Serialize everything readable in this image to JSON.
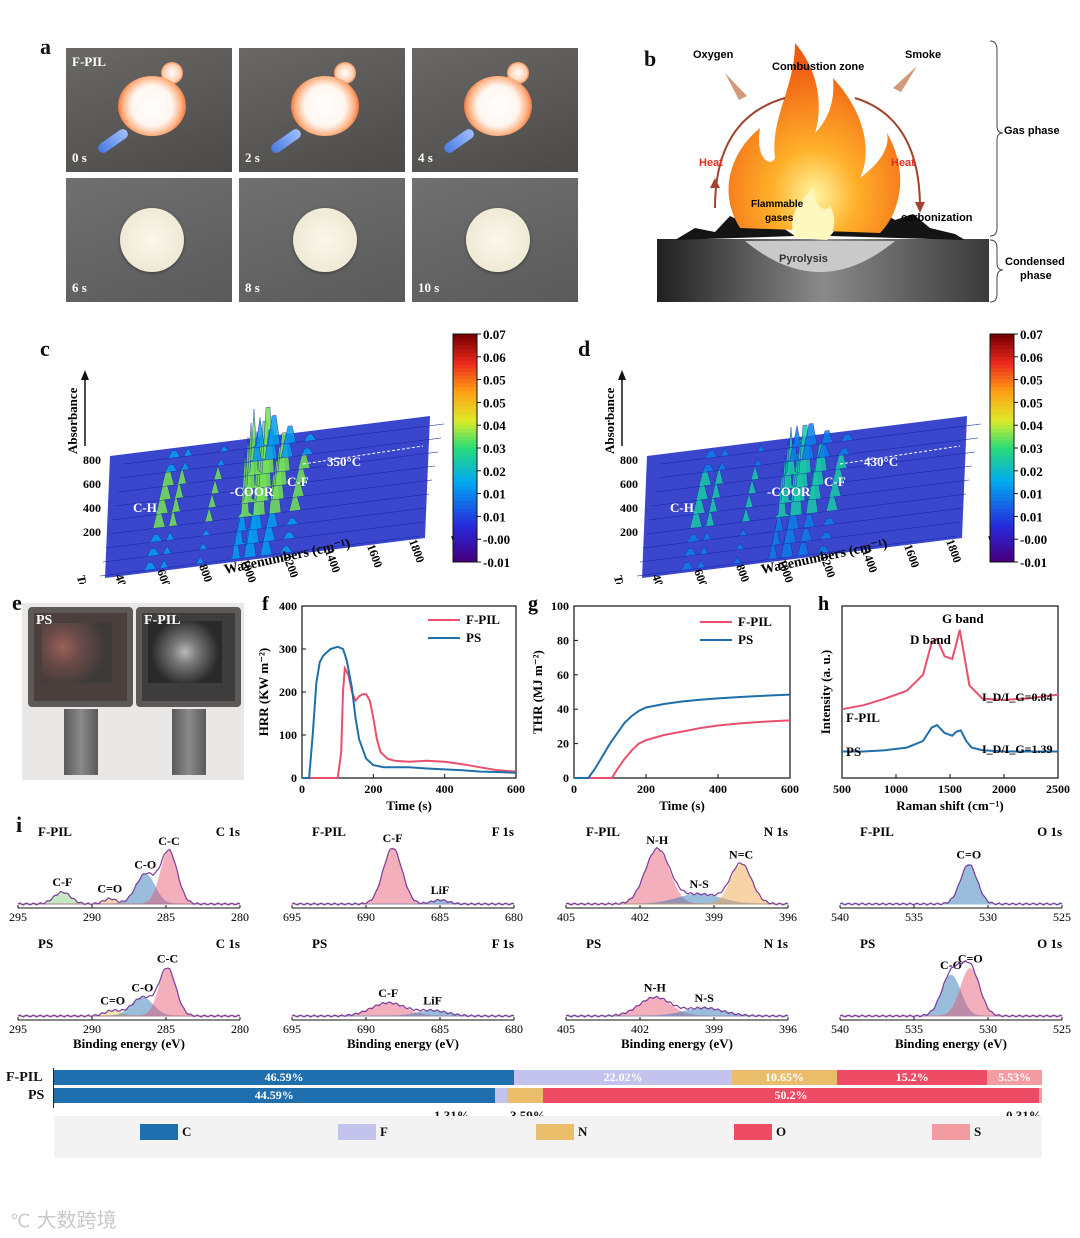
{
  "panel_a": {
    "letter": "a",
    "sample_label": "F-PIL",
    "frames": [
      {
        "time": "0 s",
        "state": "burning"
      },
      {
        "time": "2 s",
        "state": "burning"
      },
      {
        "time": "4 s",
        "state": "burning"
      },
      {
        "time": "6 s",
        "state": "extinguished"
      },
      {
        "time": "8 s",
        "state": "extinguished"
      },
      {
        "time": "10 s",
        "state": "extinguished"
      }
    ]
  },
  "panel_b": {
    "letter": "b",
    "labels": {
      "oxygen": "Oxygen",
      "combustion_zone": "Combustion zone",
      "smoke": "Smoke",
      "heat_left": "Heat",
      "heat_right": "Heat",
      "flammable_1": "Flammable",
      "flammable_2": "gases",
      "carbonization": "carbonization",
      "pyrolysis": "Pyrolysis",
      "gas_phase": "Gas phase",
      "condensed_1": "Condensed",
      "condensed_2": "phase"
    }
  },
  "panel_c": {
    "letter": "c",
    "annotation": "350°C",
    "peaks": [
      "C-H",
      "-COOR",
      "C-F"
    ]
  },
  "panel_d": {
    "letter": "d",
    "annotation": "430°C",
    "peaks": [
      "C-H",
      "-COOR",
      "C-F"
    ]
  },
  "ftir_axes": {
    "z_label": "Absorbance",
    "y_label": "Temperature (°C)",
    "x_label": "Wavenumbers (cm⁻¹)",
    "x_ticks": [
      "400",
      "600",
      "800",
      "1000",
      "1200",
      "1400",
      "1600",
      "1800",
      "2000"
    ],
    "y_ticks": [
      "200",
      "400",
      "600",
      "800"
    ],
    "colorbar_ticks": [
      "0.07",
      "0.06",
      "0.05",
      "0.05",
      "0.04",
      "0.03",
      "0.02",
      "0.01",
      "0.01",
      "-0.00",
      "-0.01"
    ]
  },
  "panel_e": {
    "letter": "e",
    "left_label": "PS",
    "right_label": "F-PIL"
  },
  "colors": {
    "fpil": "#e8506e",
    "ps": "#1f6fa8",
    "C": "#1f6fae",
    "F": "#c3c3ee",
    "N": "#e9bd6a",
    "O": "#ee4b64",
    "S": "#f39ca2"
  },
  "chart_data": [
    {
      "id": "f",
      "type": "line",
      "letter": "f",
      "xlabel": "Time (s)",
      "ylabel": "HRR (KW m⁻²)",
      "xlim": [
        0,
        600
      ],
      "ylim": [
        0,
        400
      ],
      "x_ticks": [
        "0",
        "200",
        "400",
        "600"
      ],
      "y_ticks": [
        "0",
        "100",
        "200",
        "300",
        "400"
      ],
      "series": [
        {
          "name": "F-PIL",
          "x": [
            0,
            100,
            110,
            115,
            120,
            130,
            140,
            150,
            160,
            170,
            180,
            190,
            200,
            210,
            220,
            240,
            260,
            300,
            350,
            400,
            450,
            500,
            550,
            600
          ],
          "y": [
            0,
            0,
            60,
            200,
            255,
            240,
            200,
            180,
            190,
            195,
            195,
            180,
            140,
            90,
            60,
            45,
            40,
            38,
            40,
            38,
            32,
            25,
            18,
            15
          ]
        },
        {
          "name": "PS",
          "x": [
            0,
            20,
            30,
            40,
            50,
            60,
            80,
            100,
            115,
            125,
            140,
            150,
            160,
            180,
            200,
            230,
            260,
            300,
            350,
            400,
            450,
            500,
            550,
            600
          ],
          "y": [
            0,
            0,
            100,
            220,
            270,
            285,
            300,
            305,
            300,
            275,
            210,
            140,
            90,
            45,
            30,
            25,
            25,
            25,
            22,
            20,
            18,
            15,
            14,
            12
          ]
        }
      ]
    },
    {
      "id": "g",
      "type": "line",
      "letter": "g",
      "xlabel": "Time (s)",
      "ylabel": "THR (MJ m⁻²)",
      "xlim": [
        0,
        600
      ],
      "ylim": [
        0,
        100
      ],
      "x_ticks": [
        "0",
        "200",
        "400",
        "600"
      ],
      "y_ticks": [
        "0",
        "20",
        "40",
        "60",
        "80",
        "100"
      ],
      "series": [
        {
          "name": "F-PIL",
          "x": [
            0,
            105,
            120,
            140,
            160,
            180,
            200,
            250,
            300,
            350,
            400,
            450,
            500,
            550,
            600
          ],
          "y": [
            0,
            0,
            5,
            11,
            16,
            20,
            22,
            25,
            27,
            29,
            30.5,
            31.5,
            32.3,
            33,
            33.5
          ]
        },
        {
          "name": "PS",
          "x": [
            0,
            40,
            60,
            80,
            100,
            120,
            140,
            160,
            180,
            200,
            250,
            300,
            350,
            400,
            450,
            500,
            550,
            600
          ],
          "y": [
            0,
            0,
            6,
            13,
            20,
            26,
            32,
            36,
            39,
            41,
            43,
            44.5,
            45.5,
            46.3,
            47,
            47.5,
            48,
            48.5
          ]
        }
      ]
    },
    {
      "id": "h",
      "type": "line",
      "letter": "h",
      "xlabel": "Raman shift (cm⁻¹)",
      "ylabel": "Intensity (a. u.)",
      "xlim": [
        500,
        2500
      ],
      "x_ticks": [
        "500",
        "1000",
        "1500",
        "2000",
        "2500"
      ],
      "annotations": [
        "G band",
        "D band",
        "I_D/I_G=0.84",
        "I_D/I_G=1.39"
      ],
      "series": [
        {
          "name": "F-PIL",
          "x": [
            500,
            700,
            900,
            1100,
            1250,
            1330,
            1380,
            1450,
            1520,
            1560,
            1590,
            1620,
            1680,
            1800,
            2000,
            2200,
            2400,
            2500
          ],
          "y": [
            0.52,
            0.55,
            0.6,
            0.66,
            0.78,
            1.02,
            1.05,
            0.92,
            0.9,
            1.02,
            1.12,
            0.98,
            0.7,
            0.6,
            0.59,
            0.6,
            0.62,
            0.63
          ]
        },
        {
          "name": "PS",
          "x": [
            500,
            700,
            900,
            1100,
            1250,
            1330,
            1380,
            1450,
            1520,
            1560,
            1600,
            1650,
            1700,
            1800,
            2000,
            2200,
            2400,
            2500
          ],
          "y": [
            0.12,
            0.12,
            0.13,
            0.15,
            0.2,
            0.3,
            0.32,
            0.26,
            0.24,
            0.27,
            0.28,
            0.2,
            0.15,
            0.13,
            0.12,
            0.12,
            0.12,
            0.12
          ]
        }
      ]
    },
    {
      "id": "i",
      "type": "line",
      "letter": "i",
      "xlabel": "Binding energy (eV)",
      "panels": [
        {
          "sample": "F-PIL",
          "element": "C 1s",
          "x_ticks": [
            "295",
            "290",
            "285",
            "280"
          ],
          "xlim": [
            295,
            280
          ],
          "peaks": [
            {
              "label": "C-F",
              "center": 292,
              "height": 0.18,
              "width": 0.8,
              "color": "#7fcf7f"
            },
            {
              "label": "C=O",
              "center": 288.8,
              "height": 0.08,
              "width": 0.6,
              "color": "#f0a060"
            },
            {
              "label": "C-O",
              "center": 286.4,
              "height": 0.45,
              "width": 0.9,
              "color": "#1f6fae"
            },
            {
              "label": "C-C",
              "center": 284.8,
              "height": 0.8,
              "width": 0.8,
              "color": "#e8506e"
            }
          ]
        },
        {
          "sample": "F-PIL",
          "element": "F 1s",
          "x_ticks": [
            "695",
            "690",
            "685",
            "680"
          ],
          "xlim": [
            695,
            680
          ],
          "peaks": [
            {
              "label": "C-F",
              "center": 688.2,
              "height": 0.85,
              "width": 0.9,
              "color": "#e8506e"
            },
            {
              "label": "LiF",
              "center": 685,
              "height": 0.06,
              "width": 0.8,
              "color": "#1f6fae"
            }
          ]
        },
        {
          "sample": "F-PIL",
          "element": "N 1s",
          "x_ticks": [
            "405",
            "402",
            "399",
            "396"
          ],
          "xlim": [
            405,
            396
          ],
          "peaks": [
            {
              "label": "N-H",
              "center": 401.3,
              "height": 0.82,
              "width": 0.7,
              "color": "#e8506e"
            },
            {
              "label": "N-S",
              "center": 399.6,
              "height": 0.15,
              "width": 1.2,
              "color": "#1f6fae"
            },
            {
              "label": "N=C",
              "center": 397.9,
              "height": 0.6,
              "width": 0.6,
              "color": "#f0a040"
            }
          ]
        },
        {
          "sample": "F-PIL",
          "element": "O 1s",
          "x_ticks": [
            "540",
            "535",
            "530",
            "525"
          ],
          "xlim": [
            540,
            525
          ],
          "peaks": [
            {
              "label": "C=O",
              "center": 531.3,
              "height": 0.6,
              "width": 0.8,
              "color": "#1f6fae"
            }
          ]
        },
        {
          "sample": "PS",
          "element": "C 1s",
          "x_ticks": [
            "295",
            "290",
            "285",
            "280"
          ],
          "xlim": [
            295,
            280
          ],
          "peaks": [
            {
              "label": "C=O",
              "center": 288.6,
              "height": 0.08,
              "width": 0.8,
              "color": "#f0c050"
            },
            {
              "label": "C-O",
              "center": 286.6,
              "height": 0.28,
              "width": 1.0,
              "color": "#1f6fae"
            },
            {
              "label": "C-C",
              "center": 284.9,
              "height": 0.72,
              "width": 0.8,
              "color": "#e8506e"
            }
          ]
        },
        {
          "sample": "PS",
          "element": "F 1s",
          "x_ticks": [
            "695",
            "690",
            "685",
            "680"
          ],
          "xlim": [
            695,
            680
          ],
          "peaks": [
            {
              "label": "C-F",
              "center": 688.5,
              "height": 0.2,
              "width": 1.6,
              "color": "#e8506e"
            },
            {
              "label": "LiF",
              "center": 685.5,
              "height": 0.08,
              "width": 1.4,
              "color": "#1f6fae"
            }
          ]
        },
        {
          "sample": "PS",
          "element": "N 1s",
          "x_ticks": [
            "405",
            "402",
            "399",
            "396"
          ],
          "xlim": [
            405,
            396
          ],
          "peaks": [
            {
              "label": "N-H",
              "center": 401.4,
              "height": 0.28,
              "width": 0.9,
              "color": "#e8506e"
            },
            {
              "label": "N-S",
              "center": 399.4,
              "height": 0.12,
              "width": 1.1,
              "color": "#1f6fae"
            }
          ]
        },
        {
          "sample": "PS",
          "element": "O 1s",
          "x_ticks": [
            "540",
            "535",
            "530",
            "525"
          ],
          "xlim": [
            540,
            525
          ],
          "peaks": [
            {
              "label": "C-O",
              "center": 532.5,
              "height": 0.62,
              "width": 0.9,
              "color": "#1f6fae"
            },
            {
              "label": "C=O",
              "center": 531.2,
              "height": 0.72,
              "width": 0.9,
              "color": "#e8506e"
            }
          ]
        }
      ]
    },
    {
      "id": "composition",
      "type": "bar",
      "stacked": true,
      "orientation": "horizontal",
      "categories": [
        "F-PIL",
        "PS"
      ],
      "series": [
        {
          "name": "C",
          "values": [
            46.59,
            44.59
          ],
          "labels": [
            "46.59%",
            "44.59%"
          ]
        },
        {
          "name": "F",
          "values": [
            22.02,
            1.31
          ],
          "labels": [
            "22.02%",
            "1.31%"
          ]
        },
        {
          "name": "N",
          "values": [
            10.65,
            3.59
          ],
          "labels": [
            "10.65%",
            "3.59%"
          ]
        },
        {
          "name": "O",
          "values": [
            15.2,
            50.2
          ],
          "labels": [
            "15.2%",
            "50.2%"
          ]
        },
        {
          "name": "S",
          "values": [
            5.53,
            0.31
          ],
          "labels": [
            "5.53%",
            "0.31%"
          ]
        }
      ],
      "legend": [
        "C",
        "F",
        "N",
        "O",
        "S"
      ]
    }
  ],
  "watermark": "大数跨境"
}
